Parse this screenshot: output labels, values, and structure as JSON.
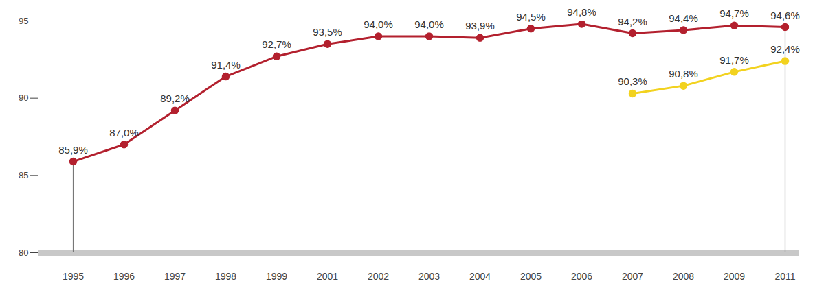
{
  "chart_data": {
    "type": "line",
    "categories": [
      "1995",
      "1996",
      "1997",
      "1998",
      "1999",
      "2001",
      "2002",
      "2003",
      "2004",
      "2005",
      "2006",
      "2007",
      "2008",
      "2009",
      "2011"
    ],
    "series": [
      {
        "color": "#b3202e",
        "marker": "circle",
        "values": [
          85.9,
          87.0,
          89.2,
          91.4,
          92.7,
          93.5,
          94.0,
          94.0,
          93.9,
          94.5,
          94.8,
          94.2,
          94.4,
          94.7,
          94.6
        ],
        "value_labels": [
          "85,9%",
          "87,0%",
          "89,2%",
          "91,4%",
          "92,7%",
          "93,5%",
          "94,0%",
          "94,0%",
          "93,9%",
          "94,5%",
          "94,8%",
          "94,2%",
          "94,4%",
          "94,7%",
          "94,6%"
        ]
      },
      {
        "color": "#f2d21f",
        "marker": "circle",
        "values": [
          null,
          null,
          null,
          null,
          null,
          null,
          null,
          null,
          null,
          null,
          null,
          90.3,
          90.8,
          91.7,
          92.4
        ],
        "value_labels": [
          null,
          null,
          null,
          null,
          null,
          null,
          null,
          null,
          null,
          null,
          null,
          "90,3%",
          "90,8%",
          "91,7%",
          "92,4%"
        ]
      }
    ],
    "ylim": [
      80,
      95
    ],
    "yticks": [
      80,
      85,
      90,
      95
    ],
    "data_labels": true,
    "grid": false
  }
}
